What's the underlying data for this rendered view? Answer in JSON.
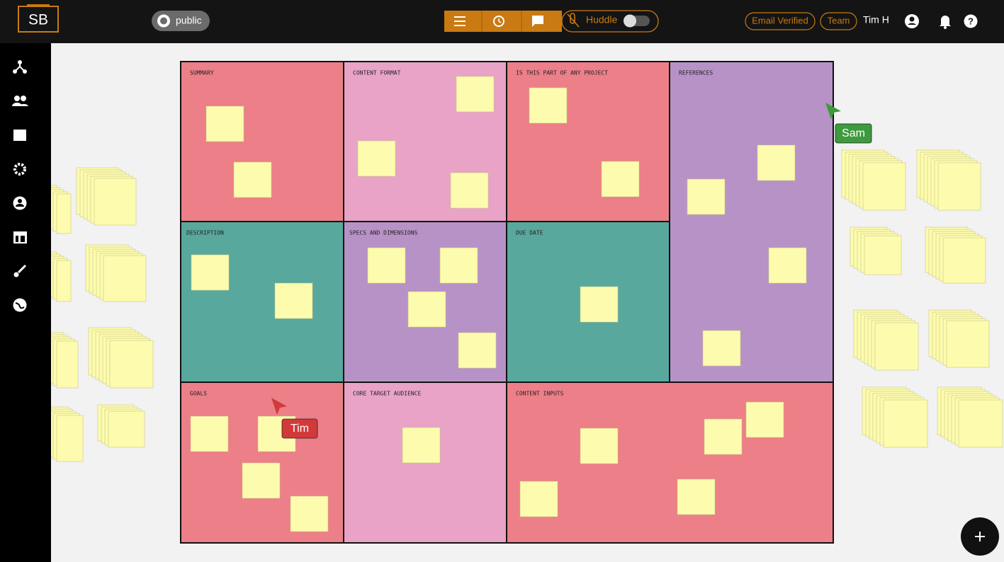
{
  "header": {
    "logo": "SB",
    "visibility": "public",
    "huddle": "Huddle",
    "email_status": "Email Verified",
    "team": "Team",
    "user": "Tim H"
  },
  "board": {
    "sections": [
      {
        "title": "SUMMARY"
      },
      {
        "title": "CONTENT FORMAT"
      },
      {
        "title": "IS THIS PART OF ANY PROJECT"
      },
      {
        "title": "REFERENCES"
      },
      {
        "title": "DESCRIPTION"
      },
      {
        "title": "SPECS AND DIMENSIONS"
      },
      {
        "title": "DUE DATE"
      },
      {
        "title": "GOALS"
      },
      {
        "title": "CORE TARGET AUDIENCE"
      },
      {
        "title": "CONTENT INPUTS"
      }
    ]
  },
  "cursors": [
    {
      "label": "Sam"
    },
    {
      "label": "Tim"
    }
  ]
}
